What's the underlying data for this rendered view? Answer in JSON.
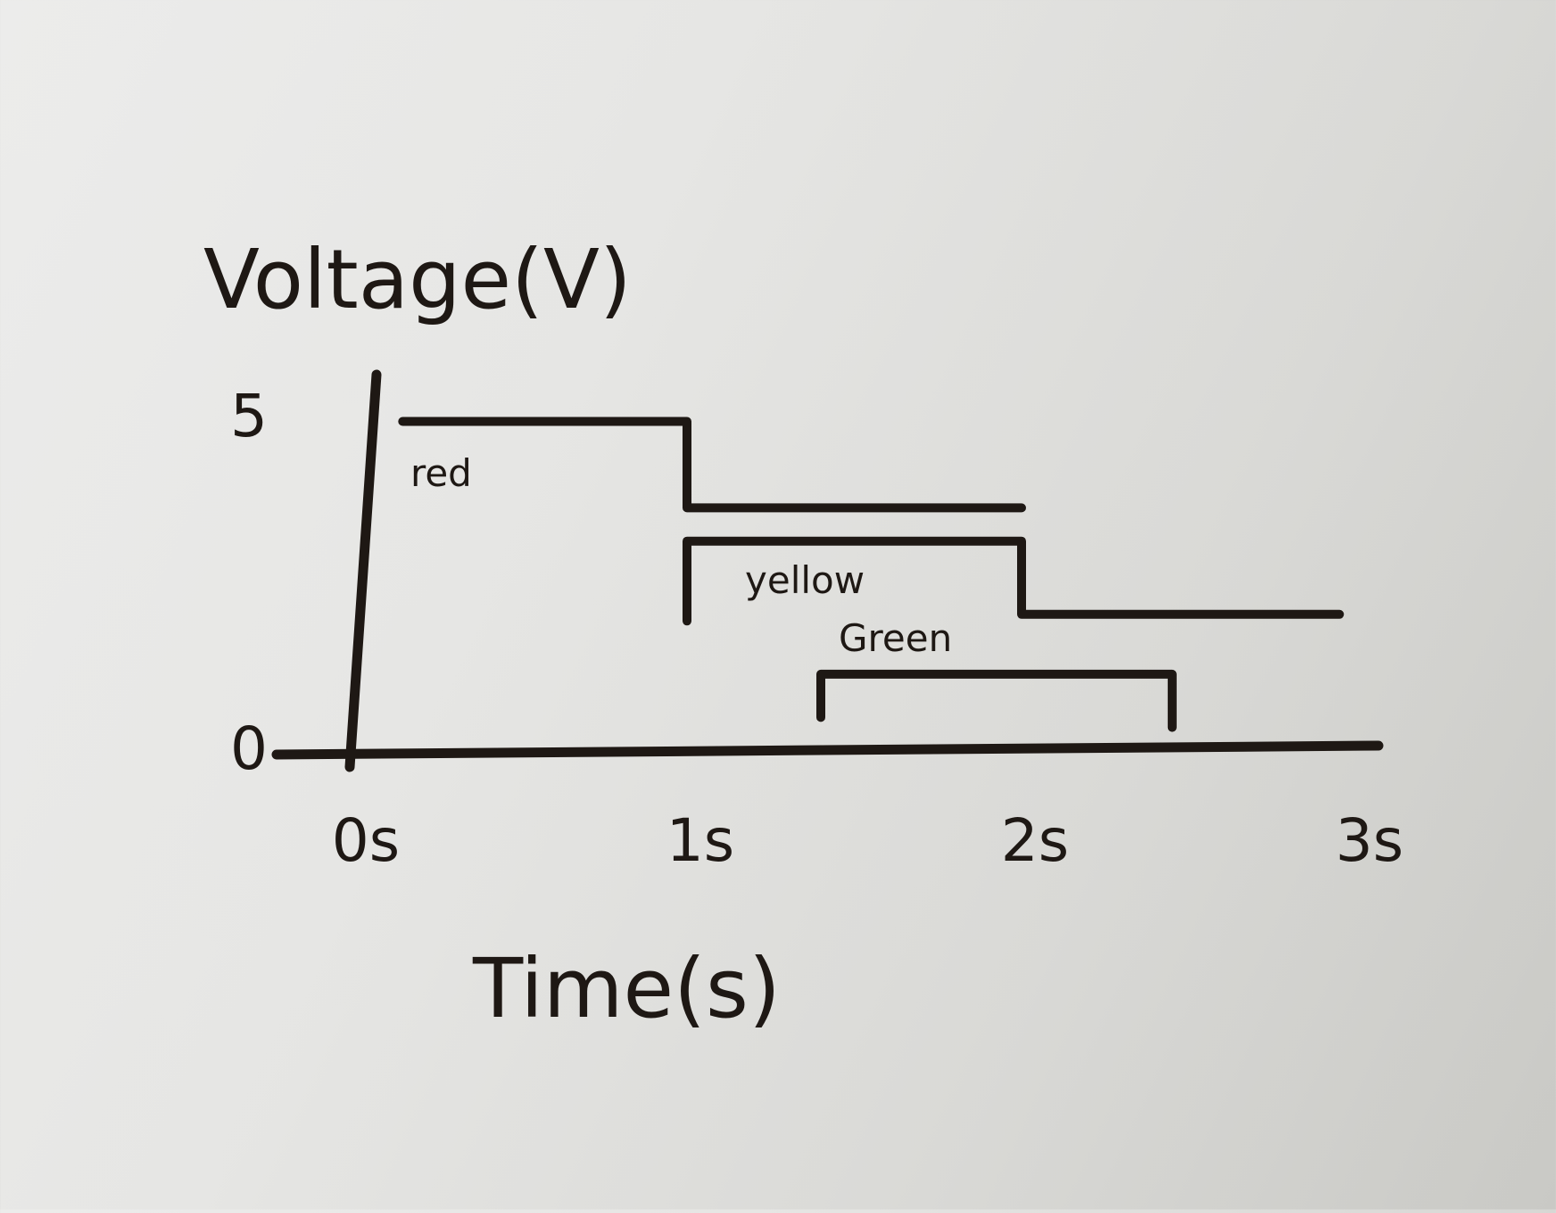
{
  "chart_data": {
    "type": "line",
    "ylabel": "Voltage(V)",
    "xlabel": "Time(s)",
    "x_ticks": [
      "0s",
      "1s",
      "2s",
      "3s"
    ],
    "y_ticks": [
      "0",
      "5"
    ],
    "xlim": [
      0,
      3
    ],
    "ylim": [
      0,
      5
    ],
    "grid": false,
    "legend": "none",
    "stroke_color": "#1e1814",
    "series": [
      {
        "name": "red",
        "points": [
          [
            0.15,
            4.9
          ],
          [
            1.0,
            4.9
          ],
          [
            1.0,
            3.6
          ],
          [
            2.0,
            3.6
          ]
        ]
      },
      {
        "name": "yellow",
        "points": [
          [
            1.0,
            1.9
          ],
          [
            1.0,
            3.1
          ],
          [
            2.0,
            3.1
          ],
          [
            2.0,
            2.0
          ],
          [
            2.95,
            2.0
          ]
        ]
      },
      {
        "name": "Green",
        "points": [
          [
            1.4,
            0.45
          ],
          [
            1.4,
            1.1
          ],
          [
            2.45,
            1.1
          ],
          [
            2.45,
            0.3
          ]
        ]
      }
    ]
  }
}
